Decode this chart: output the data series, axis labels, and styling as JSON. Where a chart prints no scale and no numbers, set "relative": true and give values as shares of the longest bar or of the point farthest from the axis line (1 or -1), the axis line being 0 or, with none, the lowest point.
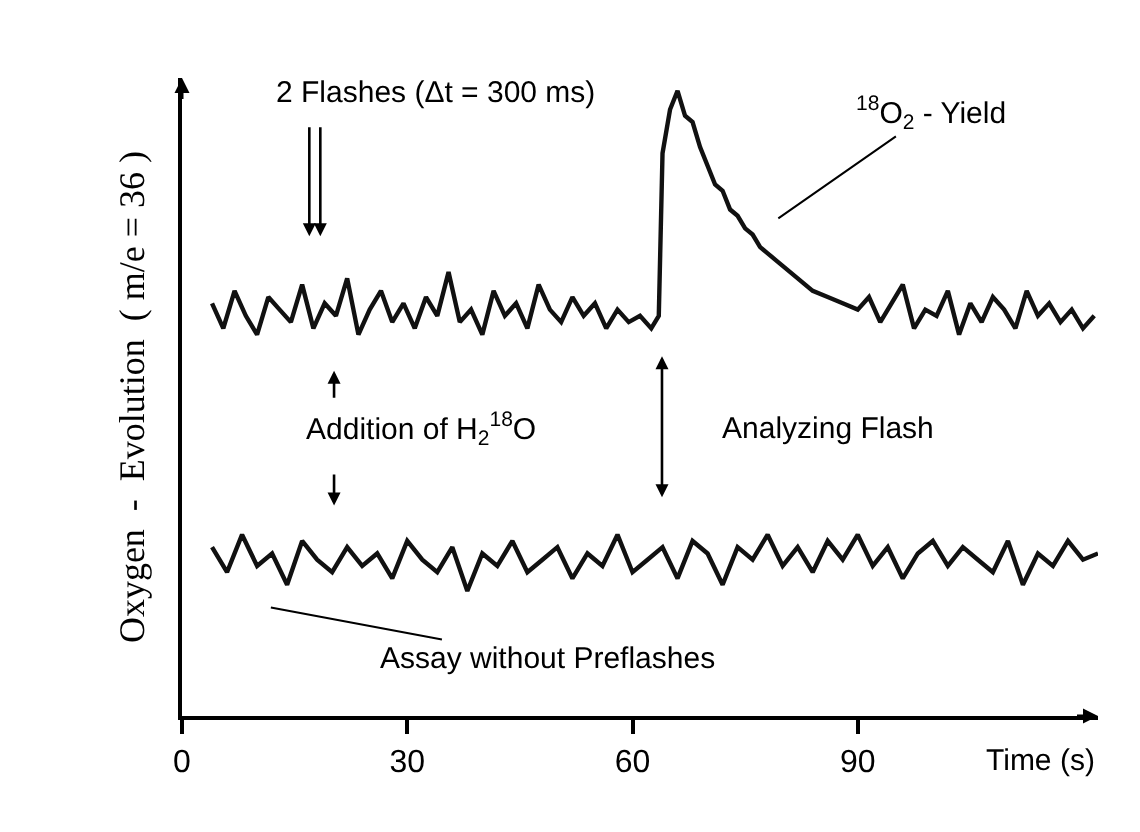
{
  "chart_data": {
    "type": "line",
    "relative": true,
    "ylabel": "Oxygen  -  Evolution  ( m/e = 36 )",
    "xlabel": "Time (s)",
    "xlim": [
      0,
      122
    ],
    "xticks": [
      0,
      30,
      60,
      90
    ],
    "legend": false,
    "marker": "none",
    "line_style": "solid",
    "series": [
      {
        "color": "#111111",
        "x": [
          4,
          5.5,
          7,
          8.5,
          10,
          11.5,
          13,
          14.5,
          16,
          17.5,
          19,
          20.5,
          22,
          23.5,
          25,
          26.5,
          28,
          29.5,
          31,
          32.5,
          34,
          35.5,
          37,
          38.5,
          40,
          41.5,
          43,
          44.5,
          46,
          47.5,
          49,
          50.5,
          52,
          53.5,
          55,
          56.5,
          58,
          59.5,
          61,
          62.5,
          63.5,
          64,
          65,
          66,
          67,
          68,
          69,
          70,
          71,
          72,
          73,
          74,
          75,
          76,
          77,
          78,
          79,
          80,
          82,
          84,
          86,
          88,
          90,
          91.5,
          93,
          94.5,
          96,
          97.5,
          99,
          100.5,
          102,
          103.5,
          105,
          106.5,
          108,
          109.5,
          111,
          112.5,
          114,
          115.5,
          117,
          118.5,
          120,
          121.5
        ],
        "values": [
          0.66,
          0.62,
          0.68,
          0.64,
          0.61,
          0.67,
          0.65,
          0.63,
          0.69,
          0.62,
          0.66,
          0.64,
          0.7,
          0.61,
          0.65,
          0.68,
          0.63,
          0.66,
          0.62,
          0.67,
          0.64,
          0.71,
          0.63,
          0.65,
          0.61,
          0.68,
          0.64,
          0.66,
          0.62,
          0.69,
          0.65,
          0.63,
          0.67,
          0.64,
          0.66,
          0.62,
          0.65,
          0.63,
          0.64,
          0.62,
          0.64,
          0.9,
          0.97,
          1.0,
          0.96,
          0.95,
          0.91,
          0.88,
          0.85,
          0.84,
          0.81,
          0.8,
          0.78,
          0.77,
          0.75,
          0.74,
          0.73,
          0.72,
          0.7,
          0.68,
          0.67,
          0.66,
          0.65,
          0.67,
          0.63,
          0.66,
          0.69,
          0.62,
          0.65,
          0.64,
          0.68,
          0.61,
          0.66,
          0.63,
          0.67,
          0.65,
          0.62,
          0.68,
          0.64,
          0.66,
          0.63,
          0.65,
          0.62,
          0.64
        ]
      },
      {
        "color": "#111111",
        "x": [
          4,
          6,
          8,
          10,
          12,
          14,
          16,
          18,
          20,
          22,
          24,
          26,
          28,
          30,
          32,
          34,
          36,
          38,
          40,
          42,
          44,
          46,
          48,
          50,
          52,
          54,
          56,
          58,
          60,
          62,
          64,
          66,
          68,
          70,
          72,
          74,
          76,
          78,
          80,
          82,
          84,
          86,
          88,
          90,
          92,
          94,
          96,
          98,
          100,
          102,
          104,
          106,
          108,
          110,
          112,
          114,
          116,
          118,
          120,
          122
        ],
        "values": [
          0.27,
          0.23,
          0.29,
          0.24,
          0.26,
          0.21,
          0.28,
          0.25,
          0.23,
          0.27,
          0.24,
          0.26,
          0.22,
          0.28,
          0.25,
          0.23,
          0.27,
          0.2,
          0.26,
          0.24,
          0.28,
          0.23,
          0.25,
          0.27,
          0.22,
          0.26,
          0.24,
          0.29,
          0.23,
          0.25,
          0.27,
          0.22,
          0.28,
          0.26,
          0.21,
          0.27,
          0.25,
          0.29,
          0.24,
          0.27,
          0.23,
          0.28,
          0.25,
          0.29,
          0.24,
          0.27,
          0.22,
          0.26,
          0.28,
          0.24,
          0.27,
          0.25,
          0.23,
          0.28,
          0.21,
          0.26,
          0.24,
          0.28,
          0.25,
          0.26
        ]
      }
    ],
    "annotations": [
      "2 Flashes (Δt = 300 ms)",
      "Addition of H$_{2}$$^{18}$O",
      "Analyzing Flash",
      "$^{18}$O$_{2}$ - Yield",
      "Assay without Preflashes"
    ]
  }
}
